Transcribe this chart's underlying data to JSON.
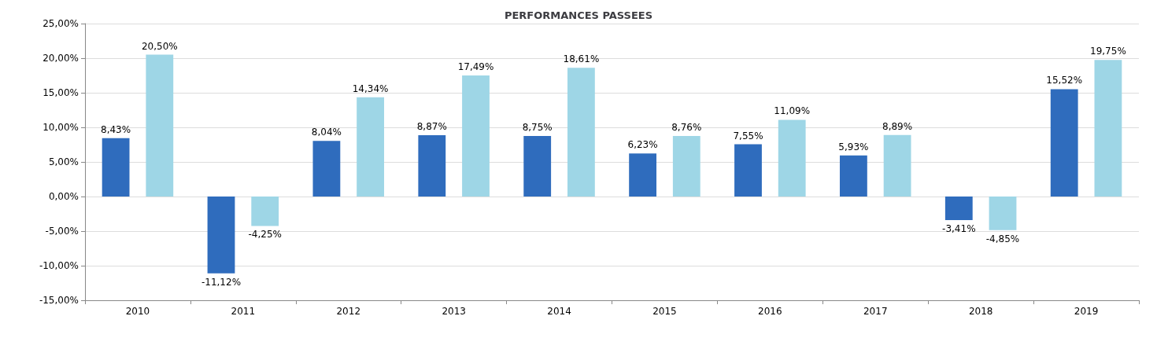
{
  "chart_data": {
    "type": "bar",
    "title": "PERFORMANCES PASSEES",
    "categories": [
      "2010",
      "2011",
      "2012",
      "2013",
      "2014",
      "2015",
      "2016",
      "2017",
      "2018",
      "2019"
    ],
    "series": [
      {
        "color": "#2f6cbd",
        "values": [
          8.43,
          -11.12,
          8.04,
          8.87,
          8.75,
          6.23,
          7.55,
          5.93,
          -3.41,
          15.52
        ],
        "value_labels": [
          "8,43%",
          "-11,12%",
          "8,04%",
          "8,87%",
          "8,75%",
          "6,23%",
          "7,55%",
          "5,93%",
          "-3,41%",
          "15,52%"
        ]
      },
      {
        "color": "#9ed6e6",
        "values": [
          20.5,
          -4.25,
          14.34,
          17.49,
          18.61,
          8.76,
          11.09,
          8.89,
          -4.85,
          19.75
        ],
        "value_labels": [
          "20,50%",
          "-4,25%",
          "14,34%",
          "17,49%",
          "18,61%",
          "8,76%",
          "11,09%",
          "8,89%",
          "-4,85%",
          "19,75%"
        ]
      }
    ],
    "ylim": [
      -15,
      25
    ],
    "yticks": [
      {
        "value": -15,
        "label": "-15,00%"
      },
      {
        "value": -10,
        "label": "-10,00%"
      },
      {
        "value": -5,
        "label": "-5,00%"
      },
      {
        "value": 0,
        "label": "0,00%"
      },
      {
        "value": 5,
        "label": "5,00%"
      },
      {
        "value": 10,
        "label": "10,00%"
      },
      {
        "value": 15,
        "label": "15,00%"
      },
      {
        "value": 20,
        "label": "20,00%"
      },
      {
        "value": 25,
        "label": "25,00%"
      }
    ],
    "grid": "y"
  }
}
